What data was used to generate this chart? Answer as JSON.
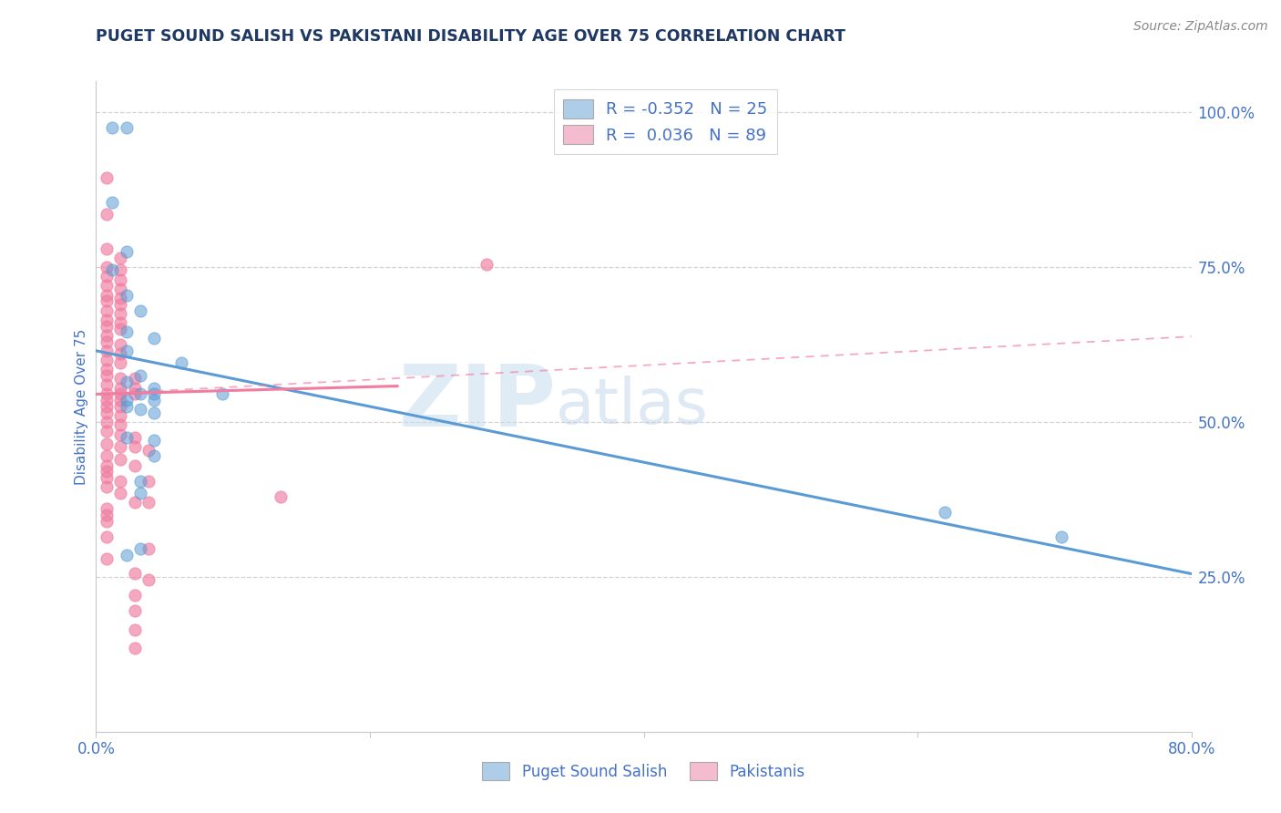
{
  "title": "PUGET SOUND SALISH VS PAKISTANI DISABILITY AGE OVER 75 CORRELATION CHART",
  "source": "Source: ZipAtlas.com",
  "ylabel": "Disability Age Over 75",
  "xlim": [
    0.0,
    0.8
  ],
  "ylim": [
    0.0,
    1.05
  ],
  "watermark_zip": "ZIP",
  "watermark_atlas": "atlas",
  "blue_color": "#5b9bd5",
  "pink_color": "#f07ca0",
  "blue_fill": "#aecde8",
  "pink_fill": "#f5bcd0",
  "background_color": "#ffffff",
  "grid_color": "#c8c8c8",
  "title_color": "#1f3864",
  "axis_color": "#4472c4",
  "blue_scatter": [
    [
      0.012,
      0.975
    ],
    [
      0.022,
      0.975
    ],
    [
      0.012,
      0.855
    ],
    [
      0.022,
      0.775
    ],
    [
      0.012,
      0.745
    ],
    [
      0.022,
      0.705
    ],
    [
      0.032,
      0.68
    ],
    [
      0.022,
      0.645
    ],
    [
      0.042,
      0.635
    ],
    [
      0.022,
      0.615
    ],
    [
      0.062,
      0.595
    ],
    [
      0.032,
      0.575
    ],
    [
      0.022,
      0.565
    ],
    [
      0.042,
      0.555
    ],
    [
      0.032,
      0.545
    ],
    [
      0.042,
      0.545
    ],
    [
      0.022,
      0.535
    ],
    [
      0.042,
      0.535
    ],
    [
      0.022,
      0.525
    ],
    [
      0.032,
      0.52
    ],
    [
      0.042,
      0.515
    ],
    [
      0.092,
      0.545
    ],
    [
      0.022,
      0.475
    ],
    [
      0.042,
      0.47
    ],
    [
      0.042,
      0.445
    ],
    [
      0.032,
      0.405
    ],
    [
      0.032,
      0.385
    ],
    [
      0.032,
      0.295
    ],
    [
      0.022,
      0.285
    ],
    [
      0.62,
      0.355
    ],
    [
      0.705,
      0.315
    ]
  ],
  "pink_scatter": [
    [
      0.008,
      0.895
    ],
    [
      0.008,
      0.835
    ],
    [
      0.008,
      0.78
    ],
    [
      0.018,
      0.765
    ],
    [
      0.008,
      0.75
    ],
    [
      0.018,
      0.745
    ],
    [
      0.285,
      0.755
    ],
    [
      0.008,
      0.735
    ],
    [
      0.018,
      0.73
    ],
    [
      0.008,
      0.72
    ],
    [
      0.018,
      0.715
    ],
    [
      0.008,
      0.705
    ],
    [
      0.018,
      0.7
    ],
    [
      0.008,
      0.695
    ],
    [
      0.018,
      0.69
    ],
    [
      0.008,
      0.68
    ],
    [
      0.018,
      0.675
    ],
    [
      0.008,
      0.665
    ],
    [
      0.018,
      0.66
    ],
    [
      0.008,
      0.655
    ],
    [
      0.018,
      0.65
    ],
    [
      0.008,
      0.64
    ],
    [
      0.008,
      0.63
    ],
    [
      0.018,
      0.625
    ],
    [
      0.008,
      0.615
    ],
    [
      0.018,
      0.61
    ],
    [
      0.008,
      0.6
    ],
    [
      0.018,
      0.595
    ],
    [
      0.008,
      0.585
    ],
    [
      0.008,
      0.575
    ],
    [
      0.018,
      0.57
    ],
    [
      0.028,
      0.57
    ],
    [
      0.008,
      0.56
    ],
    [
      0.018,
      0.555
    ],
    [
      0.028,
      0.555
    ],
    [
      0.008,
      0.545
    ],
    [
      0.018,
      0.545
    ],
    [
      0.028,
      0.545
    ],
    [
      0.008,
      0.535
    ],
    [
      0.018,
      0.535
    ],
    [
      0.008,
      0.525
    ],
    [
      0.018,
      0.525
    ],
    [
      0.008,
      0.515
    ],
    [
      0.018,
      0.51
    ],
    [
      0.008,
      0.5
    ],
    [
      0.018,
      0.495
    ],
    [
      0.008,
      0.485
    ],
    [
      0.018,
      0.48
    ],
    [
      0.028,
      0.475
    ],
    [
      0.008,
      0.465
    ],
    [
      0.018,
      0.46
    ],
    [
      0.028,
      0.46
    ],
    [
      0.038,
      0.455
    ],
    [
      0.008,
      0.445
    ],
    [
      0.018,
      0.44
    ],
    [
      0.008,
      0.43
    ],
    [
      0.028,
      0.43
    ],
    [
      0.008,
      0.42
    ],
    [
      0.008,
      0.41
    ],
    [
      0.018,
      0.405
    ],
    [
      0.038,
      0.405
    ],
    [
      0.008,
      0.395
    ],
    [
      0.018,
      0.385
    ],
    [
      0.135,
      0.38
    ],
    [
      0.028,
      0.37
    ],
    [
      0.038,
      0.37
    ],
    [
      0.008,
      0.36
    ],
    [
      0.008,
      0.35
    ],
    [
      0.008,
      0.34
    ],
    [
      0.008,
      0.315
    ],
    [
      0.038,
      0.295
    ],
    [
      0.008,
      0.28
    ],
    [
      0.028,
      0.255
    ],
    [
      0.038,
      0.245
    ],
    [
      0.028,
      0.22
    ],
    [
      0.028,
      0.195
    ],
    [
      0.028,
      0.165
    ],
    [
      0.028,
      0.135
    ]
  ],
  "blue_line": {
    "x0": 0.0,
    "y0": 0.615,
    "x1": 0.8,
    "y1": 0.255
  },
  "pink_line_solid_x0": 0.0,
  "pink_line_solid_y0": 0.545,
  "pink_line_solid_x1": 0.22,
  "pink_line_solid_y1": 0.558,
  "pink_line_dashed_x0": 0.0,
  "pink_line_dashed_y0": 0.545,
  "pink_line_dashed_x1": 0.8,
  "pink_line_dashed_y1": 0.638
}
